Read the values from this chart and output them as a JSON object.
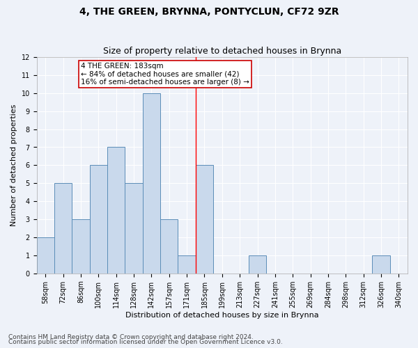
{
  "title": "4, THE GREEN, BRYNNA, PONTYCLUN, CF72 9ZR",
  "subtitle": "Size of property relative to detached houses in Brynna",
  "xlabel": "Distribution of detached houses by size in Brynna",
  "ylabel": "Number of detached properties",
  "bin_labels": [
    "58sqm",
    "72sqm",
    "86sqm",
    "100sqm",
    "114sqm",
    "128sqm",
    "142sqm",
    "157sqm",
    "171sqm",
    "185sqm",
    "199sqm",
    "213sqm",
    "227sqm",
    "241sqm",
    "255sqm",
    "269sqm",
    "284sqm",
    "298sqm",
    "312sqm",
    "326sqm",
    "340sqm"
  ],
  "bar_values": [
    2,
    5,
    3,
    6,
    7,
    5,
    10,
    3,
    1,
    6,
    0,
    0,
    1,
    0,
    0,
    0,
    0,
    0,
    0,
    1,
    0
  ],
  "bar_color": "#c9d9ec",
  "bar_edge_color": "#5b8db8",
  "ylim": [
    0,
    12
  ],
  "yticks": [
    0,
    1,
    2,
    3,
    4,
    5,
    6,
    7,
    8,
    9,
    10,
    11,
    12
  ],
  "red_line_index": 9,
  "annotation_text": "4 THE GREEN: 183sqm\n← 84% of detached houses are smaller (42)\n16% of semi-detached houses are larger (8) →",
  "annotation_box_color": "#ffffff",
  "annotation_box_edge_color": "#cc0000",
  "footnote1": "Contains HM Land Registry data © Crown copyright and database right 2024.",
  "footnote2": "Contains public sector information licensed under the Open Government Licence v3.0.",
  "background_color": "#eef2f9",
  "grid_color": "#ffffff",
  "title_fontsize": 10,
  "subtitle_fontsize": 9,
  "axis_label_fontsize": 8,
  "tick_fontsize": 7,
  "annotation_fontsize": 7.5,
  "footnote_fontsize": 6.5
}
